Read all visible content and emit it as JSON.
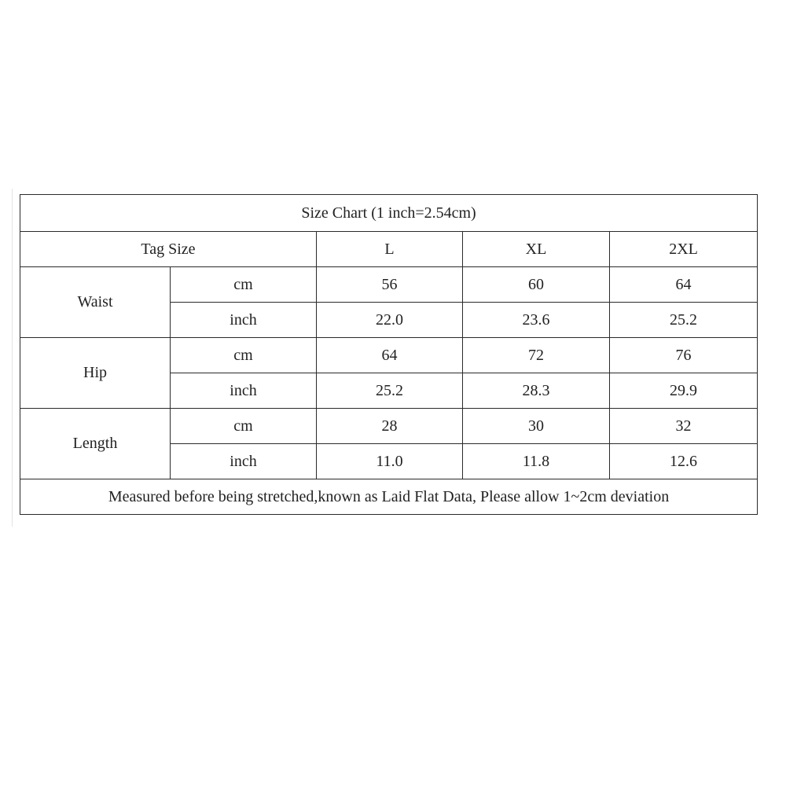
{
  "title": "Size Chart (1 inch=2.54cm)",
  "header": {
    "tag_size": "Tag Size",
    "sizes": [
      "L",
      "XL",
      "2XL"
    ]
  },
  "rows": [
    {
      "measure": "Waist",
      "cm": {
        "unit": "cm",
        "values": [
          "56",
          "60",
          "64"
        ]
      },
      "inch": {
        "unit": "inch",
        "values": [
          "22.0",
          "23.6",
          "25.2"
        ]
      }
    },
    {
      "measure": "Hip",
      "cm": {
        "unit": "cm",
        "values": [
          "64",
          "72",
          "76"
        ]
      },
      "inch": {
        "unit": "inch",
        "values": [
          "25.2",
          "28.3",
          "29.9"
        ]
      }
    },
    {
      "measure": "Length",
      "cm": {
        "unit": "cm",
        "values": [
          "28",
          "30",
          "32"
        ]
      },
      "inch": {
        "unit": "inch",
        "values": [
          "11.0",
          "11.8",
          "12.6"
        ]
      }
    }
  ],
  "footnote": "Measured before being stretched,known as Laid Flat Data, Please allow 1~2cm deviation"
}
